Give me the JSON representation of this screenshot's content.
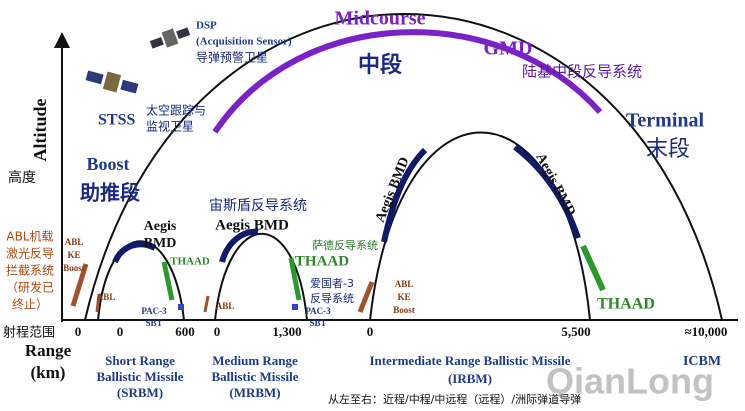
{
  "satellites": {
    "dsp": {
      "name": "DSP",
      "sensor": "(Acquisition Sensor)",
      "label": "导弹预警卫星"
    },
    "stss": {
      "name": "STSS",
      "label": [
        "太空跟踪与",
        "监视卫星"
      ]
    }
  },
  "phases": {
    "midcourse": {
      "en": "Midcourse",
      "zh": "中段"
    },
    "terminal": {
      "en": "Terminal",
      "zh": "末段"
    },
    "boost": {
      "en": "Boost",
      "zh": "助推段"
    }
  },
  "gmd": {
    "en": "GMD",
    "zh": "陆基中段反导系统"
  },
  "axis": {
    "altitude_en": "Altitude",
    "altitude_zh": "高度",
    "range_zh": "射程范围",
    "range_en": "Range",
    "range_unit": "(km)"
  },
  "aegis_zh": "宙斯盾反导系统",
  "thaad_zh": "萨德反导系统",
  "patriot_zh": [
    "爱国者-3",
    "反导系统"
  ],
  "abl_zh": [
    "ABL机载",
    "激光反导",
    "拦截系统",
    "（研发已",
    "终止）"
  ],
  "srbm": {
    "abl_ke": [
      "ABL",
      "KE",
      "Boost"
    ],
    "abl": "ABL",
    "aegis": [
      "Aegis",
      "BMD"
    ],
    "thaad": "THAAD",
    "pac3": [
      "PAC-3",
      "SBT"
    ],
    "range": [
      "0",
      "0",
      "600"
    ],
    "label": [
      "Short Range",
      "Ballistic Missile",
      "(SRBM)"
    ]
  },
  "mrbm": {
    "abl": "ABL",
    "aegis": "Aegis BMD",
    "thaad": "THAAD",
    "pac3": [
      "PAC-3",
      "SBT"
    ],
    "range": [
      "0",
      "1,300"
    ],
    "label": [
      "Medium Range",
      "Ballistic Missile",
      "(MRBM)"
    ]
  },
  "irbm": {
    "abl_ke": [
      "ABL",
      "KE",
      "Boost"
    ],
    "aegis_left": "Aegis BMD",
    "aegis_right": "Aegis BMD",
    "thaad": "THAAD",
    "range": [
      "0",
      "5,500"
    ],
    "label": [
      "Intermediate Range Ballistic Missile",
      "(IRBM)"
    ]
  },
  "icbm": {
    "range": "≈10,000",
    "label": "ICBM"
  },
  "note": "从左至右：近程/中程/中远程（远程）/洲际弹道导弹",
  "watermark": "QianLong"
}
